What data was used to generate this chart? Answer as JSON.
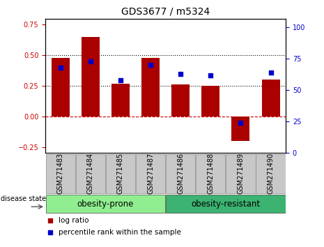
{
  "title": "GDS3677 / m5324",
  "samples": [
    "GSM271483",
    "GSM271484",
    "GSM271485",
    "GSM271487",
    "GSM271486",
    "GSM271488",
    "GSM271489",
    "GSM271490"
  ],
  "log_ratio": [
    0.48,
    0.65,
    0.27,
    0.48,
    0.26,
    0.25,
    -0.2,
    0.3
  ],
  "percentile_rank": [
    68,
    73,
    58,
    70,
    63,
    62,
    24,
    64
  ],
  "groups": [
    {
      "label": "obesity-prone",
      "indices": [
        0,
        1,
        2,
        3
      ],
      "color": "#90EE90"
    },
    {
      "label": "obesity-resistant",
      "indices": [
        4,
        5,
        6,
        7
      ],
      "color": "#3CB371"
    }
  ],
  "bar_color": "#AA0000",
  "dot_color": "#0000CC",
  "ylim_left": [
    -0.3,
    0.8
  ],
  "ylim_right": [
    0,
    107
  ],
  "yticks_left": [
    -0.25,
    0,
    0.25,
    0.5,
    0.75
  ],
  "yticks_right": [
    0,
    25,
    50,
    75,
    100
  ],
  "hlines": [
    0.5,
    0.25
  ],
  "zero_line_color": "#CC0000",
  "hline_color": "#000000",
  "legend_log_ratio": "log ratio",
  "legend_percentile": "percentile rank within the sample",
  "disease_state_label": "disease state",
  "bar_color_rgb": "#AA0000",
  "dot_color_rgb": "#0000CC",
  "xlabel_color": "#CC0000",
  "ylabel_right_color": "#0000CC",
  "group_label_fontsize": 8.5,
  "tick_label_fontsize": 7,
  "legend_fontsize": 7.5,
  "title_fontsize": 10
}
